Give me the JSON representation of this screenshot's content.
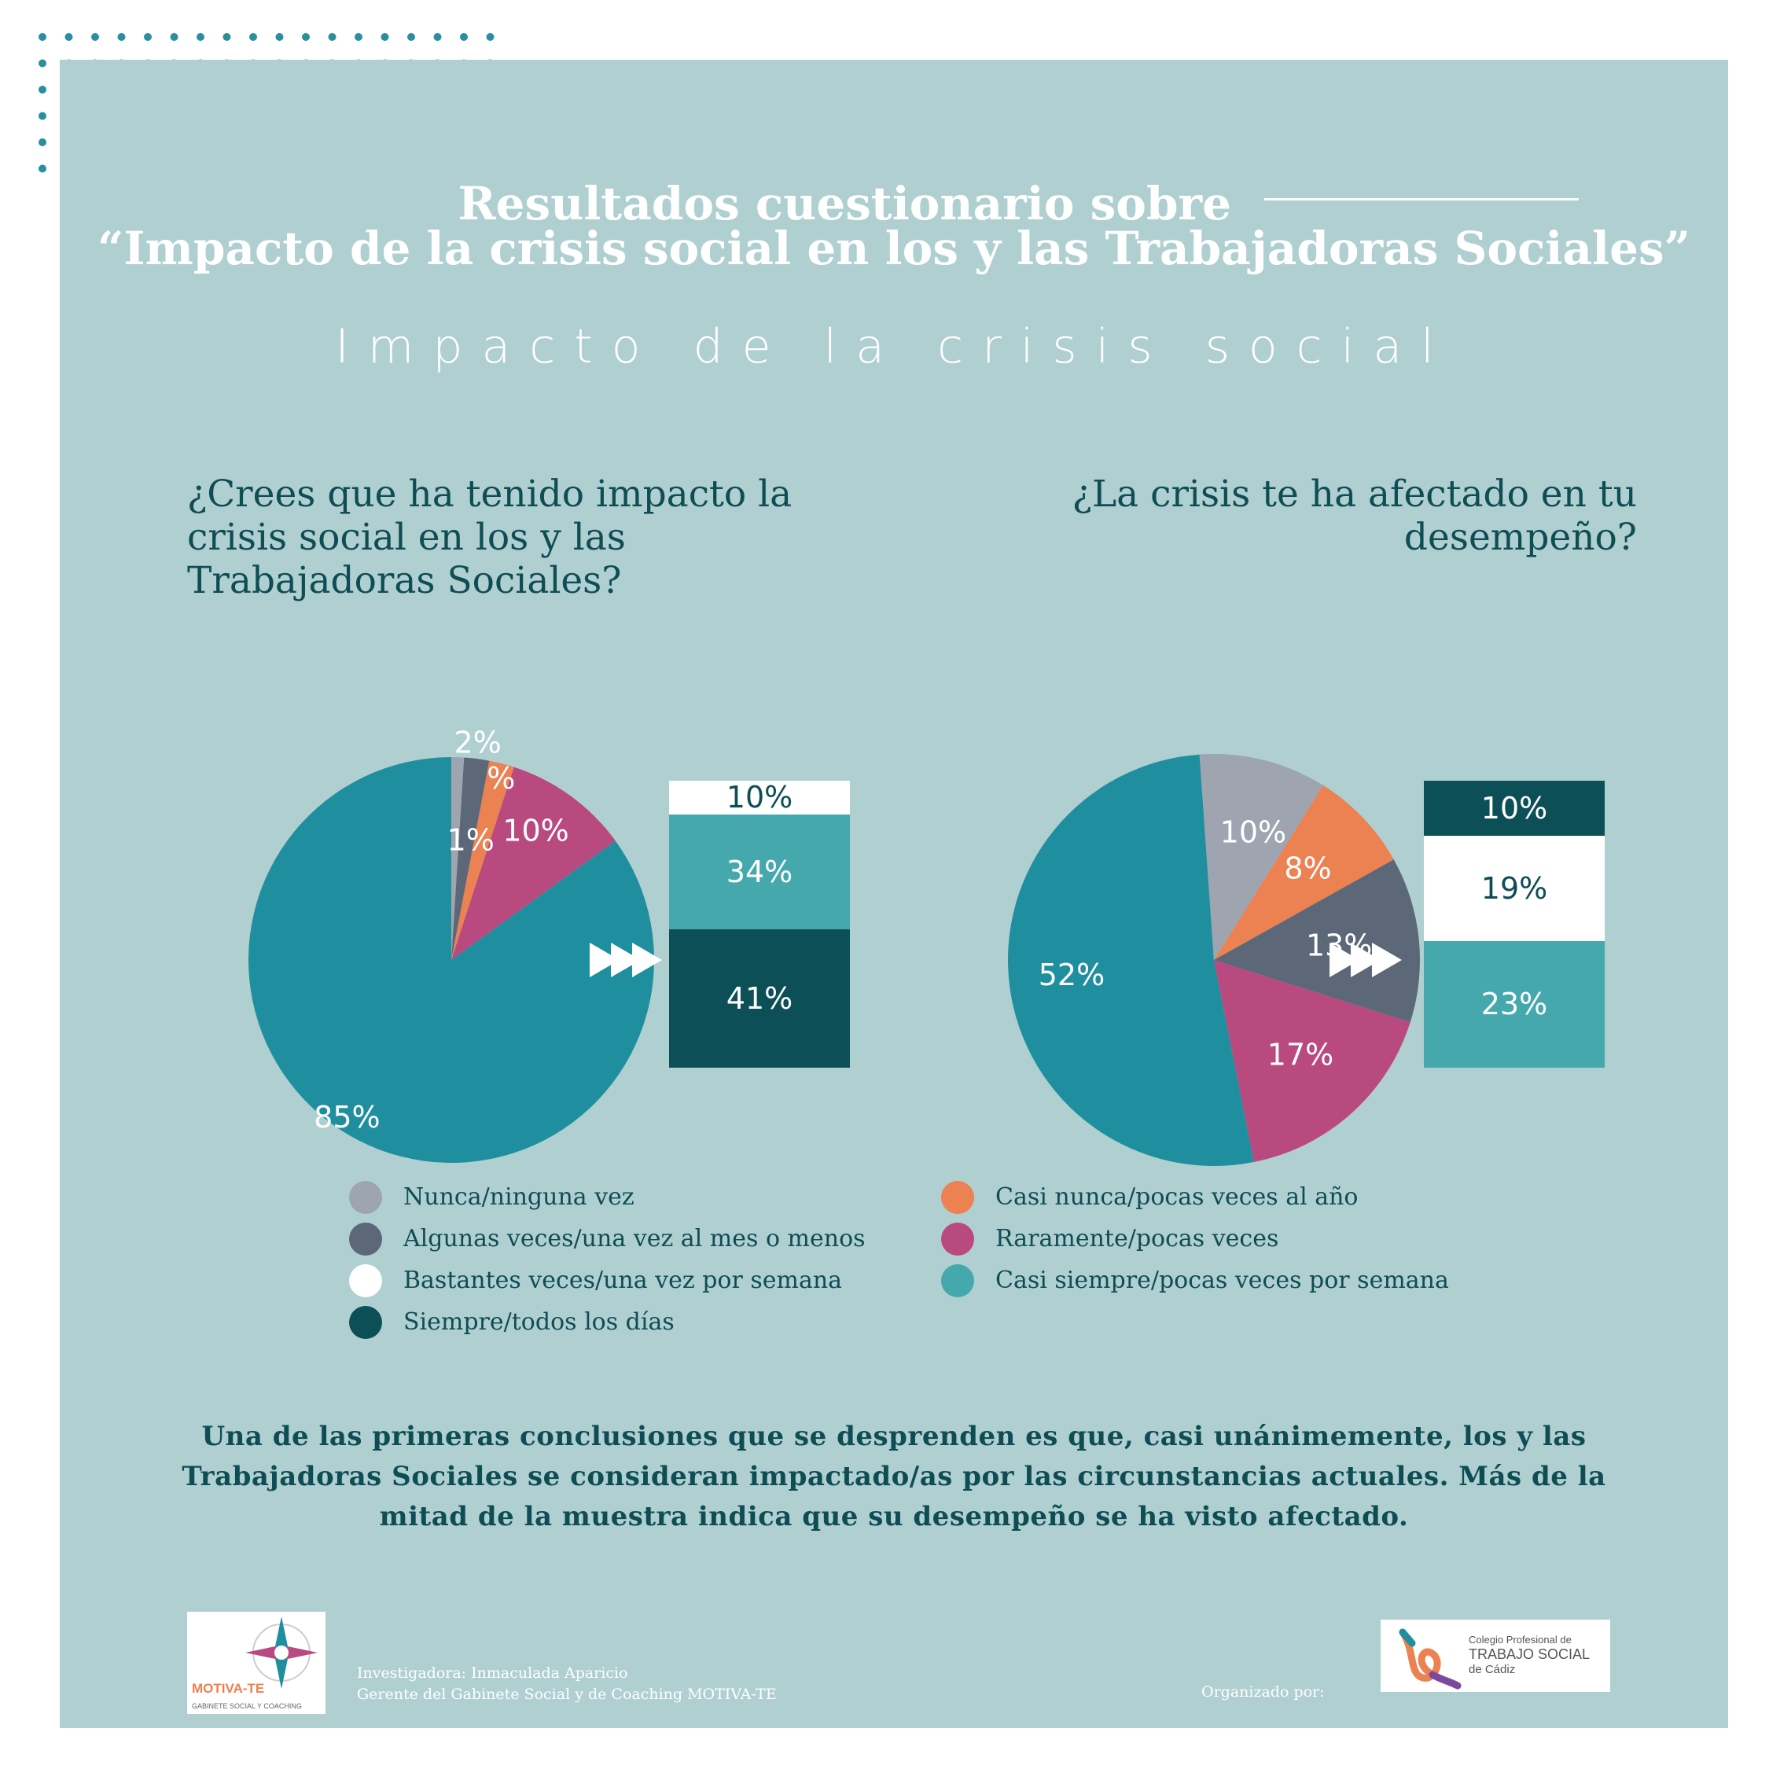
{
  "header": {
    "title_line1": "Resultados cuestionario sobre",
    "title_line2": "“Impacto de la crisis social en los y las Trabajadoras Sociales”",
    "subtitle": "Impacto de la crisis social"
  },
  "colors": {
    "background": "#b0cfd1",
    "dots": "#2a8e9c",
    "nunca": "#9ea5b0",
    "algunas": "#5c6878",
    "bastantes": "#ffffff",
    "siempre": "#0d4f57",
    "casi_nunca": "#ec8151",
    "raramente": "#b94a80",
    "casi_siempre": "#45a8ad",
    "pie_main": "#1f8f9f",
    "text_dark": "#0f4d55",
    "text_light": "#ffffff"
  },
  "chart_data": [
    {
      "type": "pie",
      "title": "¿Crees que ha tenido impacto la crisis social en los y las Trabajadoras Sociales?",
      "slices": [
        {
          "label": "",
          "value": 85,
          "value_label": "85%",
          "color_key": "pie_main"
        },
        {
          "label": "Raramente/pocas veces",
          "value": 10,
          "value_label": "10%",
          "color_key": "raramente"
        },
        {
          "label": "Casi nunca/pocas veces al año",
          "value": 2,
          "value_label": "2%",
          "color_key": "casi_nunca"
        },
        {
          "label": "Algunas veces/una vez al mes o menos",
          "value": 2,
          "value_label": "2%",
          "color_key": "algunas"
        },
        {
          "label": "Nunca/ninguna vez",
          "value": 1,
          "value_label": "1%",
          "color_key": "nunca"
        }
      ],
      "breakdown": [
        {
          "label": "Bastantes veces/una vez por semana",
          "value": 10,
          "value_label": "10%",
          "color_key": "bastantes"
        },
        {
          "label": "Casi siempre/pocas veces por semana",
          "value": 34,
          "value_label": "34%",
          "color_key": "casi_siempre"
        },
        {
          "label": "Siempre/todos los días",
          "value": 41,
          "value_label": "41%",
          "color_key": "siempre"
        }
      ]
    },
    {
      "type": "pie",
      "title": "¿La crisis te ha afectado en tu desempeño?",
      "slices": [
        {
          "label": "",
          "value": 52,
          "value_label": "52%",
          "color_key": "pie_main"
        },
        {
          "label": "Raramente/pocas veces",
          "value": 17,
          "value_label": "17%",
          "color_key": "raramente"
        },
        {
          "label": "Algunas veces/una vez al mes o menos",
          "value": 13,
          "value_label": "13%",
          "color_key": "algunas"
        },
        {
          "label": "Casi nunca/pocas veces al año",
          "value": 8,
          "value_label": "8%",
          "color_key": "casi_nunca"
        },
        {
          "label": "Nunca/ninguna vez",
          "value": 10,
          "value_label": "10%",
          "color_key": "nunca"
        }
      ],
      "breakdown": [
        {
          "label": "Siempre/todos los días",
          "value": 10,
          "value_label": "10%",
          "color_key": "siempre"
        },
        {
          "label": "Bastantes veces/una vez por semana",
          "value": 19,
          "value_label": "19%",
          "color_key": "bastantes"
        },
        {
          "label": "Casi siempre/pocas veces por semana",
          "value": 23,
          "value_label": "23%",
          "color_key": "casi_siempre"
        }
      ]
    }
  ],
  "legend": {
    "left": [
      {
        "label": "Nunca/ninguna vez",
        "color_key": "nunca"
      },
      {
        "label": "Algunas veces/una vez al mes o menos",
        "color_key": "algunas"
      },
      {
        "label": "Bastantes veces/una vez por semana",
        "color_key": "bastantes"
      },
      {
        "label": "Siempre/todos los días",
        "color_key": "siempre"
      }
    ],
    "right": [
      {
        "label": "Casi nunca/pocas veces al año",
        "color_key": "casi_nunca"
      },
      {
        "label": "Raramente/pocas veces",
        "color_key": "raramente"
      },
      {
        "label": "Casi siempre/pocas veces por semana",
        "color_key": "casi_siempre"
      }
    ]
  },
  "conclusion": "Una de las primeras conclusiones que se desprenden es que, casi unánimemente, los y las Trabajadoras Sociales se consideran impactado/as por las circunstancias actuales. Más de la mitad de la muestra indica que su desempeño se ha visto afectado.",
  "footer": {
    "credit_line1": "Investigadora: Inmaculada Aparicio",
    "credit_line2": "Gerente del Gabinete Social y de Coaching MOTIVA-TE",
    "organized_by": "Organizado por:",
    "logo_left_name": "MOTIVA-TE",
    "logo_left_tagline": "GABINETE SOCIAL Y COACHING",
    "logo_right_line1": "Colegio Profesional de",
    "logo_right_line2": "TRABAJO SOCIAL",
    "logo_right_line3": "de Cádiz"
  }
}
